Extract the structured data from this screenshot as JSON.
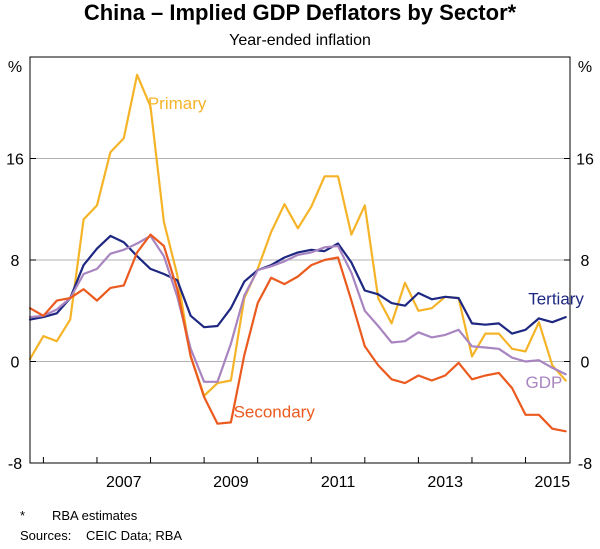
{
  "chart_data": {
    "type": "line",
    "title": "China – Implied GDP Deflators by Sector*",
    "subtitle": "Year-ended inflation",
    "ylabel_left": "%",
    "ylabel_right": "%",
    "ylim": [
      -8,
      24
    ],
    "yticks": [
      -8,
      0,
      8,
      16
    ],
    "xlim": [
      2005.75,
      2015.83
    ],
    "xticks": [
      2007,
      2009,
      2011,
      2013,
      2015
    ],
    "grid": true,
    "series": [
      {
        "name": "Primary",
        "color": "#F5B428",
        "x": [
          2005.75,
          2006.0,
          2006.25,
          2006.5,
          2006.75,
          2007.0,
          2007.25,
          2007.5,
          2007.75,
          2008.0,
          2008.25,
          2008.5,
          2008.75,
          2009.0,
          2009.25,
          2009.5,
          2009.75,
          2010.0,
          2010.25,
          2010.5,
          2010.75,
          2011.0,
          2011.25,
          2011.5,
          2011.75,
          2012.0,
          2012.25,
          2012.5,
          2012.75,
          2013.0,
          2013.25,
          2013.5,
          2013.75,
          2014.0,
          2014.25,
          2014.5,
          2014.75,
          2015.0,
          2015.25,
          2015.5,
          2015.75
        ],
        "y": [
          0.2,
          2.0,
          1.6,
          3.3,
          11.2,
          12.3,
          16.5,
          17.6,
          22.6,
          20.1,
          11.0,
          6.8,
          0.4,
          -2.7,
          -1.7,
          -1.5,
          5.0,
          7.3,
          10.2,
          12.4,
          10.5,
          12.2,
          14.6,
          14.6,
          10.0,
          12.3,
          5.0,
          3.0,
          6.2,
          4.0,
          4.2,
          5.1,
          5.0,
          0.4,
          2.2,
          2.2,
          1.0,
          0.8,
          3.1,
          -0.3,
          -1.5
        ]
      },
      {
        "name": "Tertiary",
        "color": "#1E2882",
        "x": [
          2005.75,
          2006.0,
          2006.25,
          2006.5,
          2006.75,
          2007.0,
          2007.25,
          2007.5,
          2007.75,
          2008.0,
          2008.25,
          2008.5,
          2008.75,
          2009.0,
          2009.25,
          2009.5,
          2009.75,
          2010.0,
          2010.25,
          2010.5,
          2010.75,
          2011.0,
          2011.25,
          2011.5,
          2011.75,
          2012.0,
          2012.25,
          2012.5,
          2012.75,
          2013.0,
          2013.25,
          2013.5,
          2013.75,
          2014.0,
          2014.25,
          2014.5,
          2014.75,
          2015.0,
          2015.25,
          2015.5,
          2015.75
        ],
        "y": [
          3.3,
          3.5,
          3.8,
          5.0,
          7.6,
          8.9,
          9.9,
          9.4,
          8.3,
          7.3,
          6.9,
          6.4,
          3.6,
          2.7,
          2.8,
          4.2,
          6.3,
          7.2,
          7.6,
          8.2,
          8.6,
          8.8,
          8.7,
          9.3,
          7.8,
          5.6,
          5.3,
          4.6,
          4.4,
          5.4,
          4.9,
          5.1,
          5.0,
          3.0,
          2.9,
          3.0,
          2.2,
          2.5,
          3.4,
          3.1,
          3.5
        ]
      },
      {
        "name": "GDP",
        "color": "#A885C0",
        "x": [
          2005.75,
          2006.0,
          2006.25,
          2006.5,
          2006.75,
          2007.0,
          2007.25,
          2007.5,
          2007.75,
          2008.0,
          2008.25,
          2008.5,
          2008.75,
          2009.0,
          2009.25,
          2009.5,
          2009.75,
          2010.0,
          2010.25,
          2010.5,
          2010.75,
          2011.0,
          2011.25,
          2011.5,
          2011.75,
          2012.0,
          2012.25,
          2012.5,
          2012.75,
          2013.0,
          2013.25,
          2013.5,
          2013.75,
          2014.0,
          2014.25,
          2014.5,
          2014.75,
          2015.0,
          2015.25,
          2015.5,
          2015.75
        ],
        "y": [
          3.5,
          3.6,
          4.1,
          5.0,
          6.9,
          7.3,
          8.5,
          8.8,
          9.3,
          9.9,
          8.3,
          5.1,
          1.0,
          -1.6,
          -1.6,
          1.4,
          5.2,
          7.2,
          7.5,
          7.9,
          8.4,
          8.6,
          9.0,
          9.1,
          7.0,
          4.0,
          2.8,
          1.5,
          1.6,
          2.3,
          1.9,
          2.1,
          2.5,
          1.2,
          1.1,
          1.0,
          0.3,
          0.0,
          0.1,
          -0.5,
          -1.0
        ]
      },
      {
        "name": "Secondary",
        "color": "#EB5A1E",
        "x": [
          2005.75,
          2006.0,
          2006.25,
          2006.5,
          2006.75,
          2007.0,
          2007.25,
          2007.5,
          2007.75,
          2008.0,
          2008.25,
          2008.5,
          2008.75,
          2009.0,
          2009.25,
          2009.5,
          2009.75,
          2010.0,
          2010.25,
          2010.5,
          2010.75,
          2011.0,
          2011.25,
          2011.5,
          2011.75,
          2012.0,
          2012.25,
          2012.5,
          2012.75,
          2013.0,
          2013.25,
          2013.5,
          2013.75,
          2014.0,
          2014.25,
          2014.5,
          2014.75,
          2015.0,
          2015.25,
          2015.5,
          2015.75
        ],
        "y": [
          4.2,
          3.6,
          4.8,
          5.0,
          5.7,
          4.8,
          5.8,
          6.0,
          8.6,
          10.0,
          9.1,
          5.7,
          0.4,
          -2.8,
          -4.9,
          -4.8,
          0.5,
          4.6,
          6.6,
          6.1,
          6.7,
          7.6,
          8.0,
          8.2,
          4.8,
          1.2,
          -0.3,
          -1.4,
          -1.7,
          -1.1,
          -1.5,
          -1.1,
          -0.1,
          -1.4,
          -1.1,
          -0.9,
          -2.1,
          -4.2,
          -4.2,
          -5.3,
          -5.5
        ]
      }
    ],
    "annotations": [
      {
        "text": "Primary",
        "series": "Primary",
        "x": 2007.95,
        "y": 19.9
      },
      {
        "text": "Tertiary",
        "series": "Tertiary",
        "x": 2015.05,
        "y": 4.5
      },
      {
        "text": "GDP",
        "series": "GDP",
        "x": 2015.0,
        "y": -2.1
      },
      {
        "text": "Secondary",
        "series": "Secondary",
        "x": 2009.55,
        "y": -4.4
      }
    ]
  },
  "notes": [
    {
      "symbol": "*",
      "text": "RBA estimates"
    },
    {
      "label": "Sources:",
      "text": "CEIC Data; RBA"
    }
  ]
}
